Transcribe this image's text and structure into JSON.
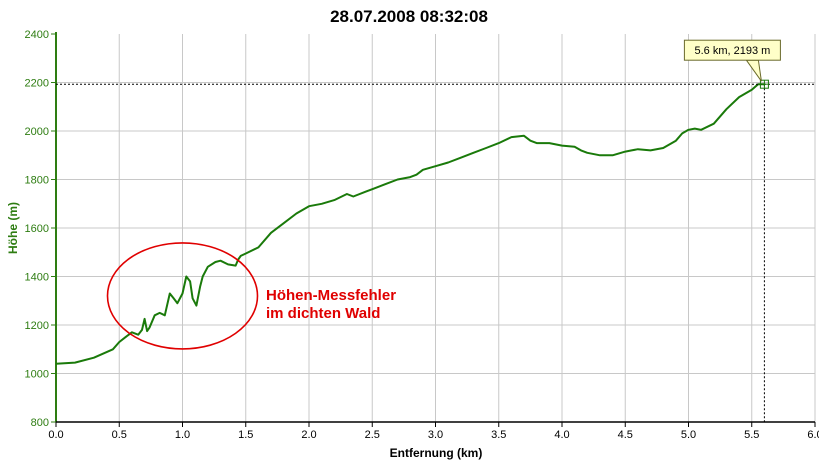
{
  "chart_data": {
    "type": "line",
    "title": "28.07.2008 08:32:08",
    "xlabel": "Entfernung (km)",
    "ylabel": "Höhe (m)",
    "xlim": [
      0,
      6
    ],
    "ylim": [
      800,
      2400
    ],
    "x_ticks": [
      "0.0",
      "0.5",
      "1.0",
      "1.5",
      "2.0",
      "2.5",
      "3.0",
      "3.5",
      "4.0",
      "4.5",
      "5.0",
      "5.5",
      "6.0"
    ],
    "y_ticks": [
      "800",
      "1000",
      "1200",
      "1400",
      "1600",
      "1800",
      "2000",
      "2200",
      "2400"
    ],
    "grid": true,
    "series": [
      {
        "color": "#1a7a0a",
        "x": [
          0.0,
          0.15,
          0.3,
          0.45,
          0.5,
          0.55,
          0.6,
          0.65,
          0.68,
          0.7,
          0.72,
          0.74,
          0.78,
          0.82,
          0.86,
          0.9,
          0.93,
          0.96,
          1.0,
          1.03,
          1.06,
          1.08,
          1.11,
          1.14,
          1.16,
          1.2,
          1.26,
          1.3,
          1.36,
          1.42,
          1.44,
          1.46,
          1.5,
          1.6,
          1.7,
          1.8,
          1.9,
          2.0,
          2.1,
          2.2,
          2.3,
          2.35,
          2.45,
          2.5,
          2.6,
          2.7,
          2.8,
          2.85,
          2.9,
          3.0,
          3.1,
          3.2,
          3.3,
          3.4,
          3.5,
          3.6,
          3.7,
          3.75,
          3.8,
          3.9,
          4.0,
          4.1,
          4.15,
          4.2,
          4.3,
          4.4,
          4.5,
          4.55,
          4.6,
          4.7,
          4.8,
          4.9,
          4.95,
          5.0,
          5.05,
          5.1,
          5.2,
          5.3,
          5.4,
          5.5,
          5.55,
          5.6
        ],
        "y": [
          1040,
          1045,
          1065,
          1100,
          1130,
          1150,
          1170,
          1160,
          1180,
          1225,
          1175,
          1190,
          1240,
          1250,
          1240,
          1330,
          1310,
          1290,
          1330,
          1400,
          1380,
          1310,
          1280,
          1360,
          1400,
          1440,
          1460,
          1465,
          1450,
          1445,
          1470,
          1485,
          1495,
          1520,
          1580,
          1620,
          1660,
          1690,
          1700,
          1715,
          1740,
          1730,
          1750,
          1760,
          1780,
          1800,
          1810,
          1820,
          1840,
          1855,
          1870,
          1890,
          1910,
          1930,
          1950,
          1975,
          1980,
          1960,
          1950,
          1950,
          1940,
          1935,
          1920,
          1910,
          1900,
          1900,
          1915,
          1920,
          1925,
          1920,
          1930,
          1960,
          1990,
          2005,
          2010,
          2005,
          2030,
          2090,
          2140,
          2170,
          2193,
          2193
        ]
      }
    ],
    "crosshair": {
      "x": 5.6,
      "y": 2193,
      "label": "5.6 km, 2193 m"
    },
    "annotation": {
      "lines": [
        "Höhen-Messfehler",
        "im dichten Wald"
      ],
      "center_x": 1.0,
      "center_y": 1320
    }
  }
}
